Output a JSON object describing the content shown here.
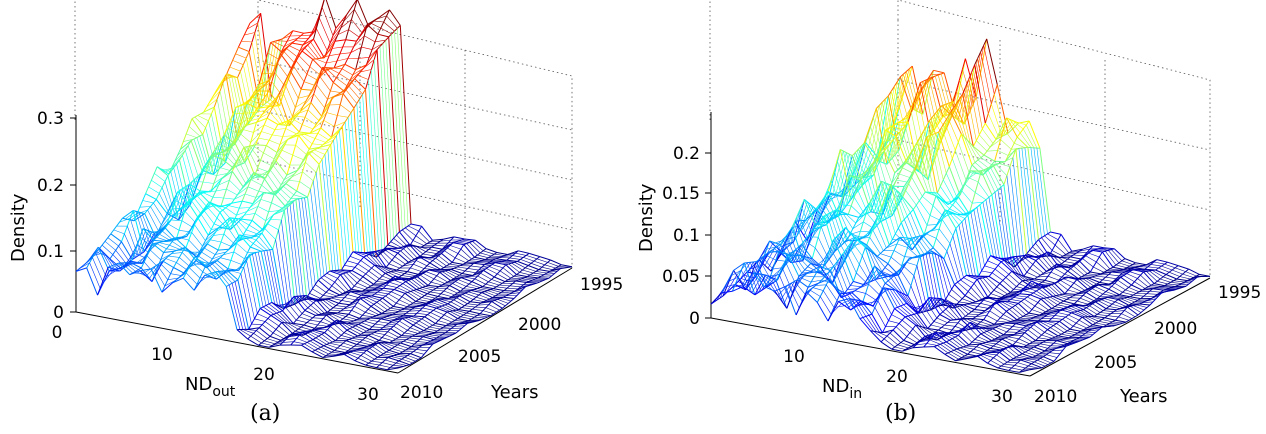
{
  "chart_data": [
    {
      "type": "surface",
      "caption": "(a)",
      "xlabel": "ND",
      "xlabel_sub": "out",
      "ylabel": "Years",
      "zlabel": "Density",
      "x_ticks": [
        "0",
        "10",
        "20",
        "30"
      ],
      "y_ticks": [
        "1995",
        "2000",
        "2005",
        "2010"
      ],
      "z_ticks": [
        "0",
        "0.1",
        "0.2",
        "0.3"
      ],
      "xlim": [
        0,
        30
      ],
      "ylim": [
        1995,
        2010
      ],
      "zlim": [
        0,
        0.33
      ],
      "peak_profile": {
        "x": [
          0,
          1,
          2,
          3,
          4,
          5,
          6,
          7,
          8,
          9,
          10,
          11,
          12,
          13,
          14
        ],
        "density": [
          0.27,
          0.28,
          0.18,
          0.27,
          0.28,
          0.3,
          0.29,
          0.33,
          0.3,
          0.31,
          0.33,
          0.32,
          0.33,
          0.34,
          0.34
        ]
      }
    },
    {
      "type": "surface",
      "caption": "(b)",
      "xlabel": "ND",
      "xlabel_sub": "in",
      "ylabel": "Years",
      "zlabel": "Density",
      "x_ticks": [
        "10",
        "20",
        "30"
      ],
      "y_ticks": [
        "1995",
        "2000",
        "2005",
        "2010"
      ],
      "z_ticks": [
        "0",
        "0.05",
        "0.1",
        "0.15",
        "0.2"
      ],
      "xlim": [
        0,
        30
      ],
      "ylim": [
        1995,
        2010
      ],
      "zlim": [
        0,
        0.24
      ],
      "peak_profile": {
        "x": [
          0,
          1,
          2,
          3,
          4,
          5,
          6,
          7,
          8,
          9,
          10,
          11,
          12,
          13,
          14
        ],
        "density": [
          0.09,
          0.13,
          0.2,
          0.14,
          0.19,
          0.21,
          0.15,
          0.2,
          0.17,
          0.23,
          0.17,
          0.14,
          0.15,
          0.15,
          0.14
        ]
      }
    }
  ]
}
